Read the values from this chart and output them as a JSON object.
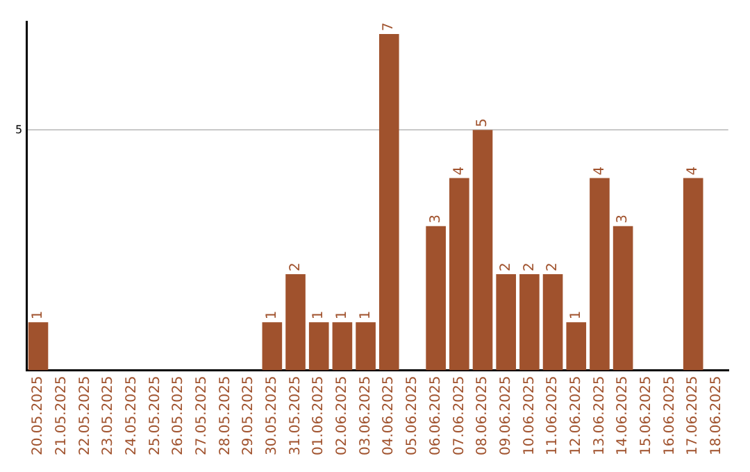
{
  "chart_data": {
    "type": "bar",
    "categories": [
      "20.05.2025",
      "21.05.2025",
      "22.05.2025",
      "23.05.2025",
      "24.05.2025",
      "25.05.2025",
      "26.05.2025",
      "27.05.2025",
      "28.05.2025",
      "29.05.2025",
      "30.05.2025",
      "31.05.2025",
      "01.06.2025",
      "02.06.2025",
      "03.06.2025",
      "04.06.2025",
      "05.06.2025",
      "06.06.2025",
      "07.06.2025",
      "08.06.2025",
      "09.06.2025",
      "10.06.2025",
      "11.06.2025",
      "12.06.2025",
      "13.06.2025",
      "14.06.2025",
      "15.06.2025",
      "16.06.2025",
      "17.06.2025",
      "18.06.2025"
    ],
    "values": [
      1,
      0,
      0,
      0,
      0,
      0,
      0,
      0,
      0,
      0,
      1,
      2,
      1,
      1,
      1,
      7,
      0,
      3,
      4,
      5,
      2,
      2,
      2,
      1,
      4,
      3,
      0,
      0,
      4,
      0
    ],
    "value_labels": [
      "1",
      null,
      null,
      null,
      null,
      null,
      null,
      null,
      null,
      null,
      "1",
      "2",
      "1",
      "1",
      "1",
      "7",
      null,
      "3",
      "4",
      "5",
      "2",
      "2",
      "2",
      "1",
      "4",
      "3",
      null,
      null,
      "4",
      null
    ],
    "color": "#a0522d",
    "ylim": [
      0,
      7.25
    ],
    "yticks": [
      5
    ],
    "grid": "y",
    "legend": false
  }
}
